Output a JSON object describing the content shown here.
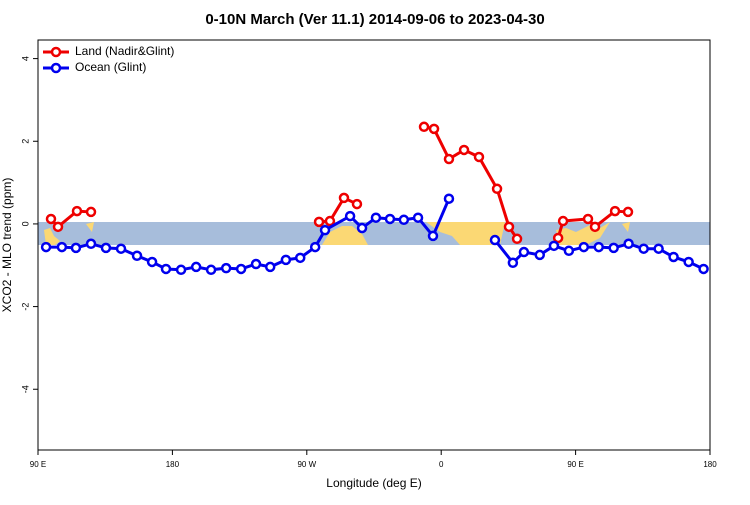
{
  "chart_data": {
    "type": "line",
    "title": "0-10N March (Ver 11.1)   2014-09-06 to 2023-04-30",
    "x_label": "Longitude (deg E)",
    "y_label": "XCO2 - MLO trend (ppm)",
    "xlim": [
      90,
      540
    ],
    "xticks": [
      {
        "value": 90,
        "label": "90 E"
      },
      180,
      {
        "value": 270,
        "label": "90 W"
      },
      {
        "value": 360,
        "label": "0"
      },
      {
        "value": 450,
        "label": "90 E"
      },
      {
        "value": 540,
        "label": "180"
      }
    ],
    "ylim": [
      -5.47,
      4.45
    ],
    "yticks": [
      -4,
      -2,
      0,
      2,
      4
    ],
    "legend": "top-left",
    "series": [
      {
        "name": "Land (Nadir&Glint)",
        "color": "#ee0000",
        "x": [
          98.7,
          103.4,
          116.1,
          125.5,
          200,
          278.2,
          285.5,
          294.9,
          303.6,
          325,
          348.5,
          355.2,
          365.2,
          375.3,
          385.3,
          397.4,
          405.4,
          410.8,
          425,
          438.3,
          441.6,
          458.3,
          463,
          476.4,
          485.1
        ],
        "values": [
          0.12,
          -0.07,
          0.31,
          0.29,
          null,
          0.05,
          0.07,
          0.63,
          0.48,
          null,
          2.35,
          2.3,
          1.57,
          1.79,
          1.62,
          0.85,
          -0.07,
          -0.36,
          null,
          -0.34,
          0.07,
          0.12,
          -0.07,
          0.31,
          0.29
        ]
      },
      {
        "name": "Ocean (Glint)",
        "color": "#0000ee",
        "x": [
          95.4,
          106,
          115.4,
          125.5,
          135.5,
          145.6,
          156.3,
          166.4,
          175.7,
          185.8,
          195.9,
          205.9,
          216,
          226,
          236,
          245.5,
          256,
          265.6,
          275.6,
          282.2,
          299,
          307,
          316.3,
          325.7,
          335,
          344.5,
          354.5,
          365.2,
          380,
          396,
          408,
          415.4,
          426,
          435.5,
          445.5,
          455.5,
          465.5,
          475.5,
          485.5,
          495.6,
          505.6,
          515.6,
          525.7,
          535.7
        ],
        "values": [
          -0.56,
          -0.56,
          -0.58,
          -0.48,
          -0.58,
          -0.6,
          -0.77,
          -0.92,
          -1.09,
          -1.11,
          -1.04,
          -1.11,
          -1.07,
          -1.09,
          -0.97,
          -1.04,
          -0.87,
          -0.82,
          -0.56,
          -0.15,
          0.19,
          -0.1,
          0.15,
          0.12,
          0.1,
          0.15,
          -0.29,
          0.61,
          null,
          -0.39,
          -0.94,
          -0.68,
          -0.75,
          -0.53,
          -0.65,
          -0.56,
          -0.56,
          -0.58,
          -0.48,
          -0.6,
          -0.6,
          -0.8,
          -0.92,
          -1.09
        ]
      }
    ]
  }
}
